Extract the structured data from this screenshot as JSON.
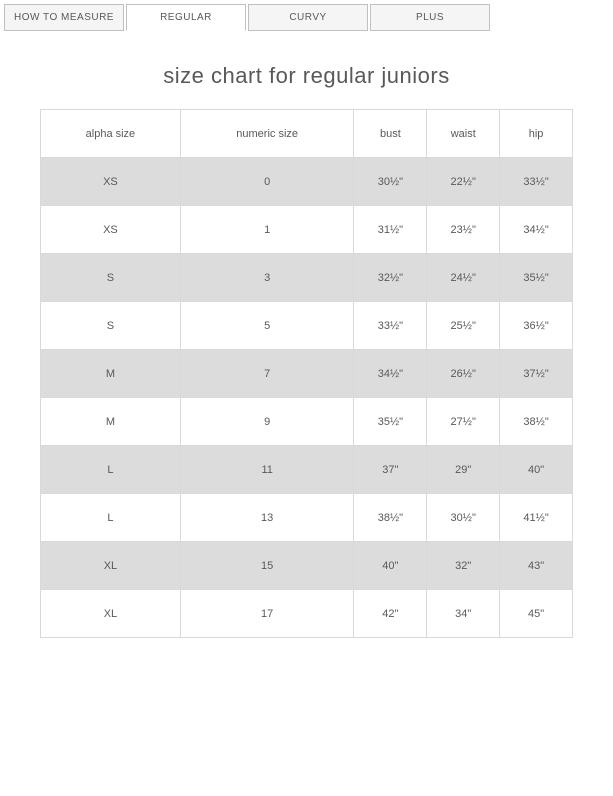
{
  "tabs": [
    {
      "label": "HOW TO MEASURE",
      "active": false
    },
    {
      "label": "REGULAR",
      "active": true
    },
    {
      "label": "CURVY",
      "active": false
    },
    {
      "label": "PLUS",
      "active": false
    }
  ],
  "title": "size chart for regular juniors",
  "table": {
    "columns": [
      "alpha size",
      "numeric size",
      "bust",
      "waist",
      "hip"
    ],
    "rows": [
      [
        "XS",
        "0",
        "30½\"",
        "22½\"",
        "33½\""
      ],
      [
        "XS",
        "1",
        "31½\"",
        "23½\"",
        "34½\""
      ],
      [
        "S",
        "3",
        "32½\"",
        "24½\"",
        "35½\""
      ],
      [
        "S",
        "5",
        "33½\"",
        "25½\"",
        "36½\""
      ],
      [
        "M",
        "7",
        "34½\"",
        "26½\"",
        "37½\""
      ],
      [
        "M",
        "9",
        "35½\"",
        "27½\"",
        "38½\""
      ],
      [
        "L",
        "11",
        "37\"",
        "29\"",
        "40\""
      ],
      [
        "L",
        "13",
        "38½\"",
        "30½\"",
        "41½\""
      ],
      [
        "XL",
        "15",
        "40\"",
        "32\"",
        "43\""
      ],
      [
        "XL",
        "17",
        "42\"",
        "34\"",
        "45\""
      ]
    ],
    "header_bg": "#ffffff",
    "row_odd_bg": "#dcdcdc",
    "row_even_bg": "#ffffff",
    "border_color": "#d9d9d9",
    "text_color": "#58595b",
    "font_size": 11
  }
}
